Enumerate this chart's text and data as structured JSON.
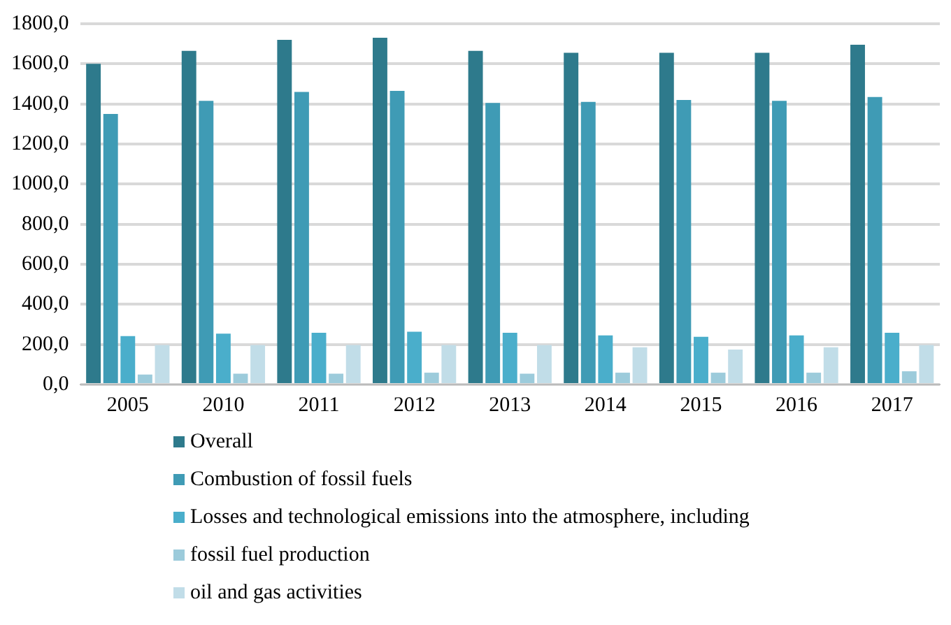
{
  "chart_data": {
    "type": "bar",
    "categories": [
      "2005",
      "2010",
      "2011",
      "2012",
      "2013",
      "2014",
      "2015",
      "2016",
      "2017"
    ],
    "series": [
      {
        "name": "Overall",
        "color": "#2e7a8c",
        "values": [
          1600,
          1665,
          1720,
          1730,
          1665,
          1655,
          1655,
          1655,
          1695
        ]
      },
      {
        "name": "Combustion of fossil fuels",
        "color": "#3f9bb5",
        "values": [
          1350,
          1415,
          1460,
          1465,
          1405,
          1410,
          1420,
          1415,
          1435
        ]
      },
      {
        "name": "Losses and technological emissions into the atmosphere, including",
        "color": "#4aaecb",
        "values": [
          242,
          254,
          258,
          263,
          258,
          245,
          238,
          245,
          258
        ]
      },
      {
        "name": "fossil fuel production",
        "color": "#9ccbdb",
        "values": [
          50,
          54,
          54,
          59,
          54,
          59,
          59,
          59,
          66
        ]
      },
      {
        "name": "oil and gas activities",
        "color": "#c1dde8",
        "values": [
          197,
          197,
          197,
          197,
          197,
          186,
          174,
          186,
          197
        ]
      }
    ],
    "ylim": [
      0,
      1800
    ],
    "yticks": [
      {
        "value": 0,
        "label": "0,0"
      },
      {
        "value": 200,
        "label": "200,0"
      },
      {
        "value": 400,
        "label": "400,0"
      },
      {
        "value": 600,
        "label": "600,0"
      },
      {
        "value": 800,
        "label": "800,0"
      },
      {
        "value": 1000,
        "label": "1000,0"
      },
      {
        "value": 1200,
        "label": "1200,0"
      },
      {
        "value": 1400,
        "label": "1400,0"
      },
      {
        "value": 1600,
        "label": "1600,0"
      },
      {
        "value": 1800,
        "label": "1800,0"
      }
    ],
    "grid": "y",
    "legend": "bottom"
  }
}
